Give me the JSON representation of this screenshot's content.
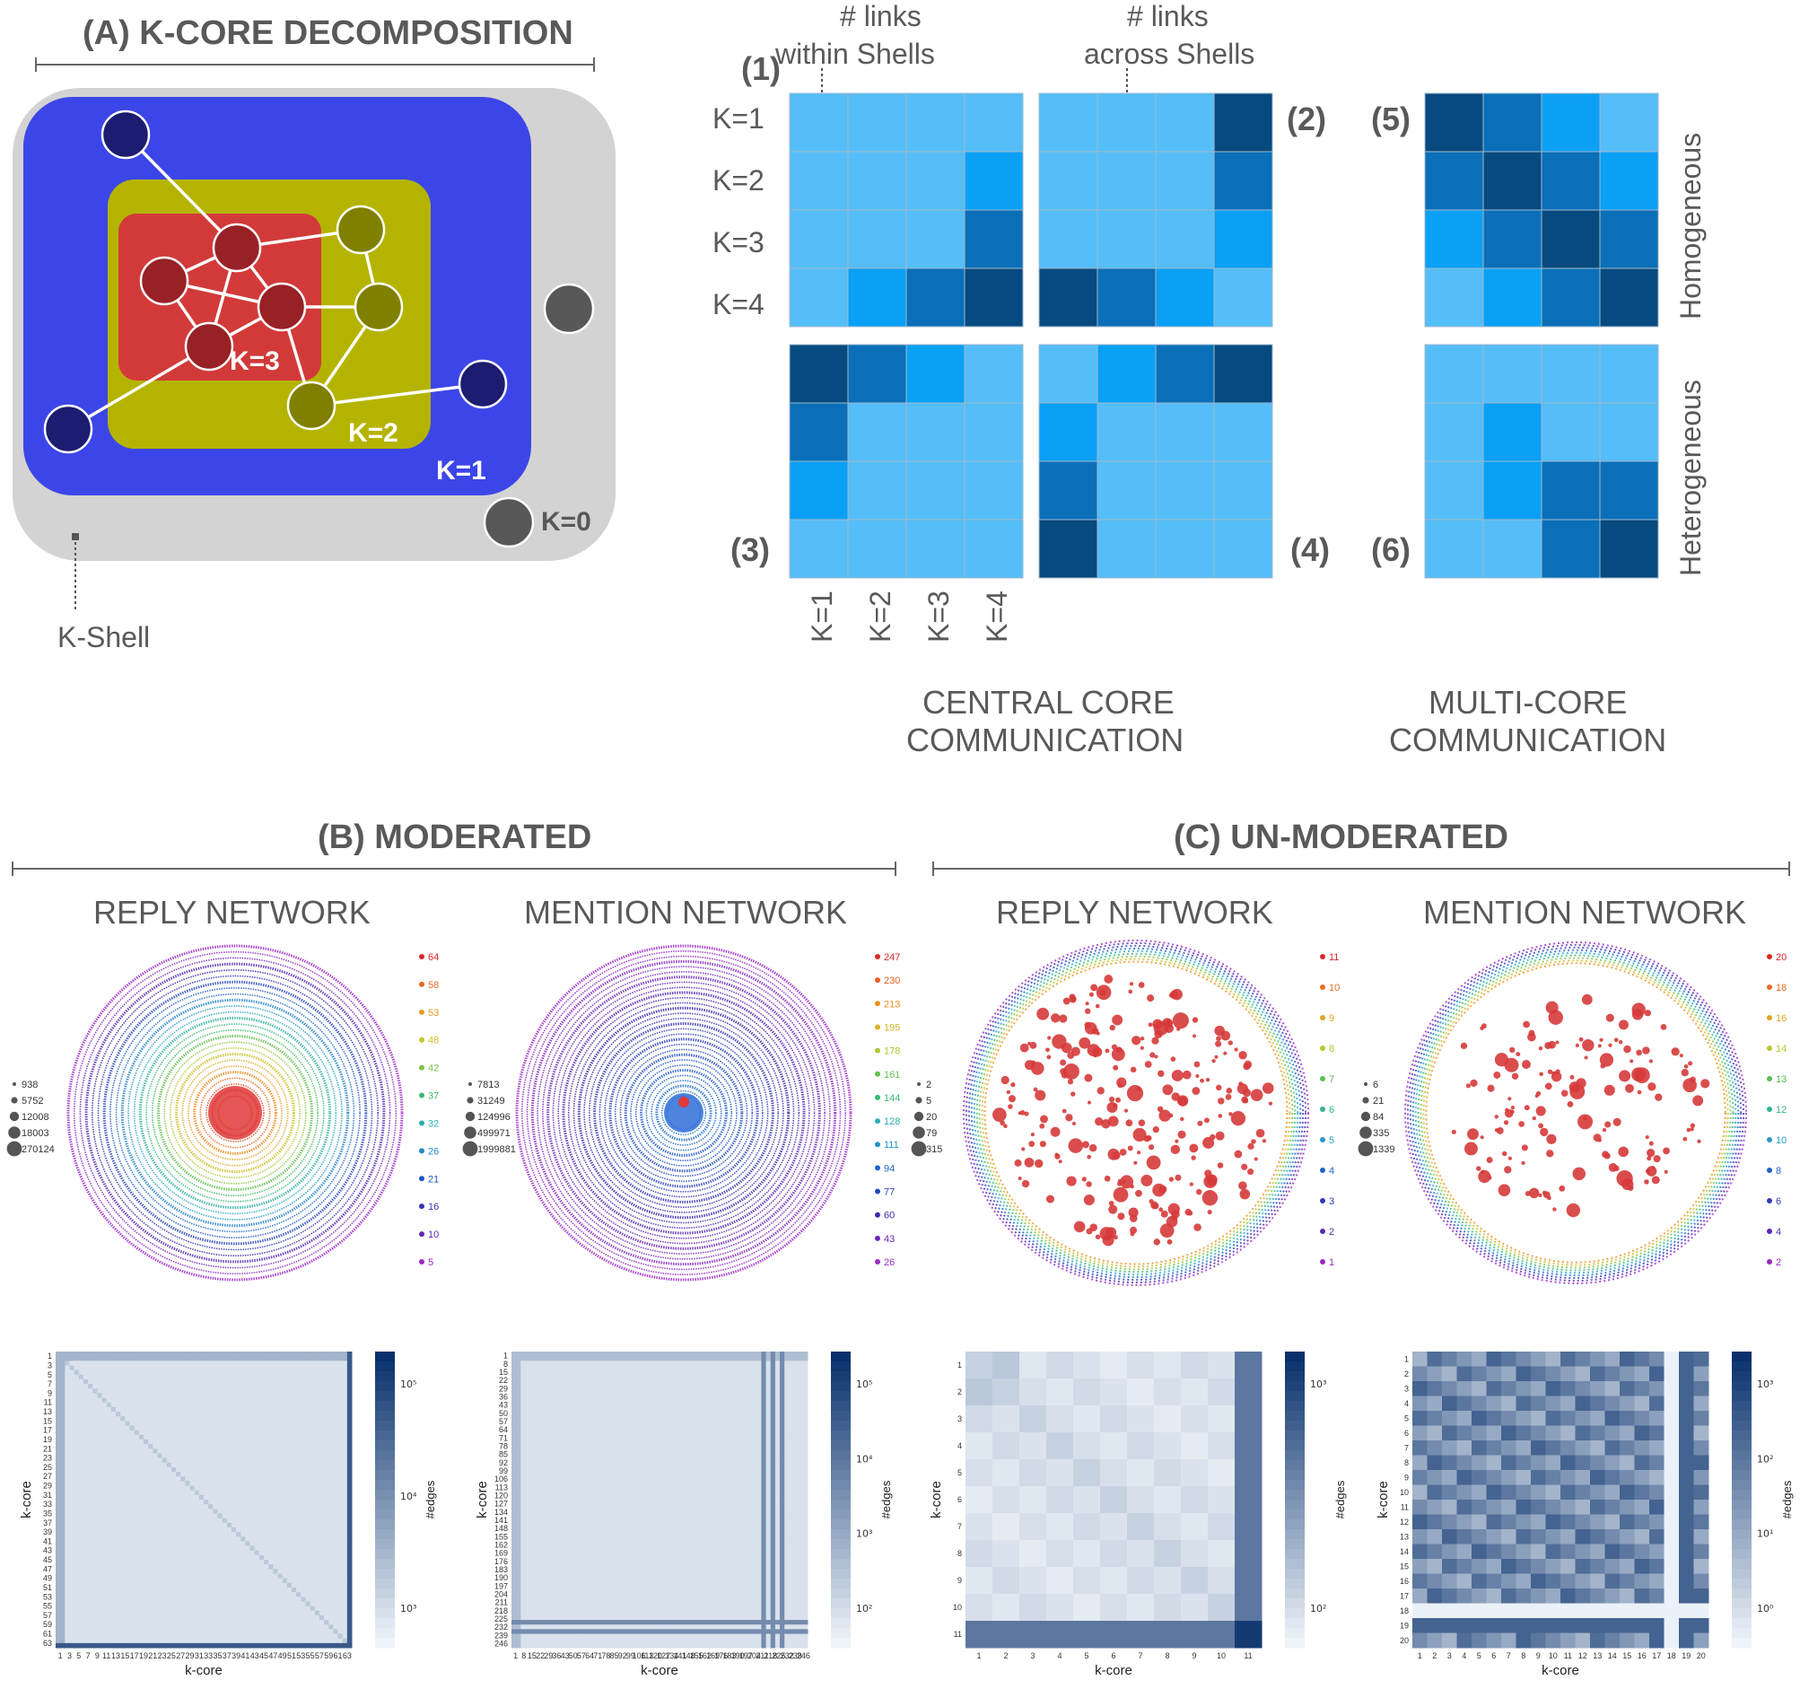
{
  "panel_a": {
    "title": "(A) K-CORE DECOMPOSITION",
    "k0": "K=0",
    "k1": "K=1",
    "k2": "K=2",
    "k3": "K=3",
    "kshell": "K-Shell"
  },
  "matrices": {
    "links_within_1": "# links",
    "links_within_2": "within Shells",
    "links_across_1": "# links",
    "links_across_2": "across Shells",
    "rows": [
      "K=1",
      "K=2",
      "K=3",
      "K=4"
    ],
    "cols": [
      "K=1",
      "K=2",
      "K=3",
      "K=4"
    ],
    "n1": "(1)",
    "n2": "(2)",
    "n3": "(3)",
    "n4": "(4)",
    "n5": "(5)",
    "n6": "(6)",
    "homogeneous": "Homogeneous",
    "heterogeneous": "Heterogeneous",
    "central_1": "CENTRAL CORE",
    "central_2": "COMMUNICATION",
    "multi_1": "MULTI-CORE",
    "multi_2": "COMMUNICATION",
    "colors": {
      "light": "#55bdf7",
      "mid": "#0aa0f5",
      "dark": "#0a6fb8",
      "darkest": "#074a80"
    },
    "m1": [
      [
        0,
        0,
        0,
        0
      ],
      [
        0,
        0,
        0,
        1
      ],
      [
        0,
        0,
        0,
        2
      ],
      [
        0,
        1,
        2,
        3
      ]
    ],
    "m2": [
      [
        0,
        0,
        0,
        3
      ],
      [
        0,
        0,
        0,
        2
      ],
      [
        0,
        0,
        0,
        1
      ],
      [
        3,
        2,
        1,
        0
      ]
    ],
    "m3": [
      [
        3,
        2,
        1,
        0
      ],
      [
        2,
        0,
        0,
        0
      ],
      [
        1,
        0,
        0,
        0
      ],
      [
        0,
        0,
        0,
        0
      ]
    ],
    "m4": [
      [
        0,
        1,
        2,
        3
      ],
      [
        1,
        0,
        0,
        0
      ],
      [
        2,
        0,
        0,
        0
      ],
      [
        3,
        0,
        0,
        0
      ]
    ],
    "m5": [
      [
        3,
        2,
        1,
        0
      ],
      [
        2,
        3,
        2,
        1
      ],
      [
        1,
        2,
        3,
        2
      ],
      [
        0,
        1,
        2,
        3
      ]
    ],
    "m6": [
      [
        0,
        0,
        0,
        0
      ],
      [
        0,
        1,
        0,
        0
      ],
      [
        0,
        1,
        2,
        2
      ],
      [
        0,
        0,
        2,
        3
      ]
    ]
  },
  "panel_b": {
    "title": "(B) MODERATED",
    "reply": "REPLY NETWORK",
    "mention": "MENTION NETWORK",
    "reply_legend": [
      "938",
      "5752",
      "12008",
      "18003",
      "270124"
    ],
    "mention_legend": [
      "7813",
      "31249",
      "124996",
      "499971",
      "1999881"
    ],
    "reply_scale": [
      "64",
      "58",
      "53",
      "48",
      "42",
      "37",
      "32",
      "26",
      "21",
      "16",
      "10",
      "5"
    ],
    "mention_scale": [
      "247",
      "230",
      "213",
      "195",
      "178",
      "161",
      "144",
      "128",
      "111",
      "94",
      "77",
      "60",
      "43",
      "26"
    ],
    "reply_ticks": [
      "1",
      "3",
      "5",
      "7",
      "9",
      "11",
      "13",
      "15",
      "17",
      "19",
      "21",
      "23",
      "25",
      "27",
      "29",
      "31",
      "33",
      "35",
      "37",
      "39",
      "41",
      "43",
      "45",
      "47",
      "49",
      "51",
      "53",
      "55",
      "57",
      "59",
      "61",
      "63"
    ],
    "mention_ticks": [
      "1",
      "8",
      "15",
      "22",
      "29",
      "36",
      "43",
      "50",
      "57",
      "64",
      "71",
      "78",
      "85",
      "92",
      "99",
      "106",
      "113",
      "120",
      "127",
      "134",
      "141",
      "148",
      "155",
      "162",
      "169",
      "176",
      "183",
      "190",
      "197",
      "204",
      "211",
      "218",
      "225",
      "232",
      "239",
      "246"
    ],
    "reply_cbar": [
      "10⁵",
      "10⁴",
      "10³"
    ],
    "mention_cbar": [
      "10⁵",
      "10⁴",
      "10³",
      "10²"
    ]
  },
  "panel_c": {
    "title": "(C) UN-MODERATED",
    "reply": "REPLY NETWORK",
    "mention": "MENTION NETWORK",
    "reply_legend": [
      "2",
      "5",
      "20",
      "79",
      "315"
    ],
    "mention_legend": [
      "6",
      "21",
      "84",
      "335",
      "1339"
    ],
    "reply_scale": [
      "11",
      "10",
      "9",
      "8",
      "7",
      "6",
      "5",
      "4",
      "3",
      "2",
      "1"
    ],
    "mention_scale": [
      "20",
      "18",
      "16",
      "14",
      "13",
      "12",
      "10",
      "8",
      "6",
      "4",
      "2"
    ],
    "reply_ticks": [
      "1",
      "2",
      "3",
      "4",
      "5",
      "6",
      "7",
      "8",
      "9",
      "10",
      "11"
    ],
    "mention_ticks": [
      "1",
      "2",
      "3",
      "4",
      "5",
      "6",
      "7",
      "8",
      "9",
      "10",
      "11",
      "12",
      "13",
      "14",
      "15",
      "16",
      "17",
      "18",
      "19",
      "20"
    ],
    "reply_cbar": [
      "10³",
      "10²"
    ],
    "mention_cbar": [
      "10³",
      "10²",
      "10¹",
      "10⁰"
    ]
  },
  "axis": {
    "xlabel": "k-core",
    "ylabel": "k-core",
    "cbar": "#edges"
  }
}
